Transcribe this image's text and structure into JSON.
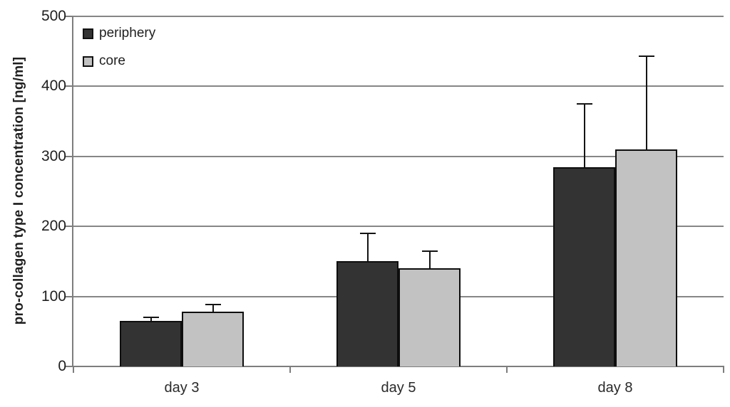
{
  "chart_data": {
    "type": "bar",
    "title": "",
    "xlabel": "",
    "ylabel": "pro-collagen type I concentration [ng/ml]",
    "categories": [
      "day 3",
      "day 5",
      "day 8"
    ],
    "series": [
      {
        "name": "periphery",
        "color": "#333333",
        "values": [
          65,
          150,
          285
        ],
        "errors": [
          5,
          40,
          90
        ]
      },
      {
        "name": "core",
        "color": "#c2c2c2",
        "values": [
          78,
          140,
          310
        ],
        "errors": [
          10,
          25,
          133
        ]
      }
    ],
    "ylim": [
      0,
      500
    ],
    "yticks": [
      0,
      100,
      200,
      300,
      400,
      500
    ],
    "grid": true,
    "error_bars": "upper-only",
    "legend_position": "top-left"
  },
  "colors": {
    "background": "#ffffff",
    "gridline": "#868686",
    "axis": "#7d7d7d",
    "bar_border": "#0e0e0e",
    "error_bar": "#141414",
    "text": "#1f1f1f"
  }
}
